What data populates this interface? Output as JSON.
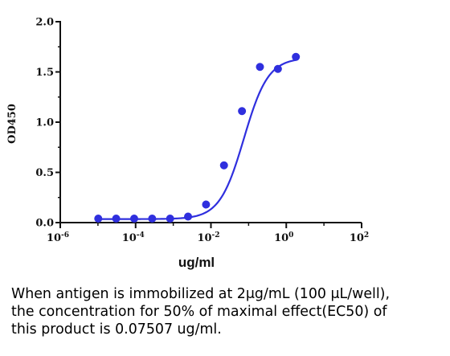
{
  "chart_data": {
    "type": "scatter",
    "title": "",
    "xlabel": "ug/ml",
    "ylabel": "OD450",
    "x_scale": "log10",
    "xlim": [
      1e-06,
      100
    ],
    "ylim": [
      0,
      2.0
    ],
    "x_ticks": [
      {
        "value": 1e-06,
        "base": "10",
        "exp": "-6"
      },
      {
        "value": 0.0001,
        "base": "10",
        "exp": "-4"
      },
      {
        "value": 0.01,
        "base": "10",
        "exp": "-2"
      },
      {
        "value": 1,
        "base": "10",
        "exp": "0"
      },
      {
        "value": 100,
        "base": "10",
        "exp": "2"
      }
    ],
    "y_ticks": [
      {
        "value": 0.0,
        "label": "0.0"
      },
      {
        "value": 0.5,
        "label": "0.5"
      },
      {
        "value": 1.0,
        "label": "1.0"
      },
      {
        "value": 1.5,
        "label": "1.5"
      },
      {
        "value": 2.0,
        "label": "2.0"
      }
    ],
    "grid": false,
    "legend": "none",
    "series": [
      {
        "points": [
          {
            "x": 1.02e-05,
            "y": 0.04
          },
          {
            "x": 3.05e-05,
            "y": 0.04
          },
          {
            "x": 9.16e-05,
            "y": 0.04
          },
          {
            "x": 0.000275,
            "y": 0.04
          },
          {
            "x": 0.000824,
            "y": 0.04
          },
          {
            "x": 0.00247,
            "y": 0.06
          },
          {
            "x": 0.00742,
            "y": 0.18
          },
          {
            "x": 0.0222,
            "y": 0.57
          },
          {
            "x": 0.0667,
            "y": 1.11
          },
          {
            "x": 0.2,
            "y": 1.55
          },
          {
            "x": 0.6,
            "y": 1.53
          },
          {
            "x": 1.8,
            "y": 1.65
          }
        ],
        "fit_curve": {
          "model": "4PL",
          "bottom": 0.035,
          "top": 1.64,
          "ec50": 0.07507,
          "hill": 1.35
        }
      }
    ],
    "color": "#2f2fde"
  },
  "caption": {
    "line1": "When antigen is immobilized at 2μg/mL (100 μL/well),",
    "line2": "the concentration for 50% of maximal effect(EC50) of",
    "line3": "this product is 0.07507 ug/ml."
  }
}
